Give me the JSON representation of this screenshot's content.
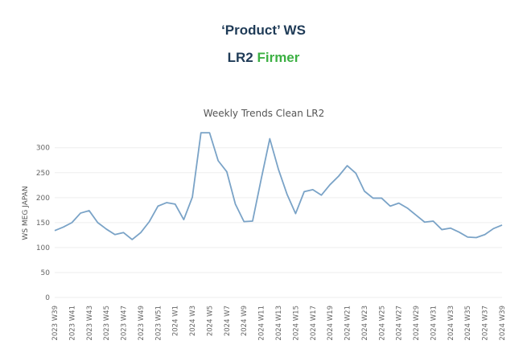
{
  "header": {
    "title": "‘Product’ WS",
    "subtitle_main": "LR2",
    "subtitle_status": "Firmer",
    "status_color": "#3cb043",
    "title_color": "#1f3b57"
  },
  "chart_data": {
    "type": "line",
    "title": "Weekly Trends Clean LR2",
    "ylabel": "WS MEG JAPAN",
    "xlabel": "",
    "ylim": [
      0,
      335
    ],
    "yticks": [
      0,
      50,
      100,
      150,
      200,
      250,
      300
    ],
    "grid": true,
    "line_color": "#7aa3c7",
    "tick_labels": [
      "2023 W39",
      "2023 W41",
      "2023 W43",
      "2023 W45",
      "2023 W47",
      "2023 W49",
      "2023 W51",
      "2024 W1",
      "2024 W3",
      "2024 W5",
      "2024 W7",
      "2024 W9",
      "2024 W11",
      "2024 W13",
      "2024 W15",
      "2024 W17",
      "2024 W19",
      "2024 W21",
      "2024 W23",
      "2024 W25",
      "2024 W27",
      "2024 W29",
      "2024 W31",
      "2024 W33",
      "2024 W35",
      "2024 W37",
      "2024 W39"
    ],
    "x": [
      "2023 W39",
      "2023 W40",
      "2023 W41",
      "2023 W42",
      "2023 W43",
      "2023 W44",
      "2023 W45",
      "2023 W46",
      "2023 W47",
      "2023 W48",
      "2023 W49",
      "2023 W50",
      "2023 W51",
      "2023 W52",
      "2024 W1",
      "2024 W2",
      "2024 W3",
      "2024 W4",
      "2024 W5",
      "2024 W6",
      "2024 W7",
      "2024 W8",
      "2024 W9",
      "2024 W10",
      "2024 W11",
      "2024 W12",
      "2024 W13",
      "2024 W14",
      "2024 W15",
      "2024 W16",
      "2024 W17",
      "2024 W18",
      "2024 W19",
      "2024 W20",
      "2024 W21",
      "2024 W22",
      "2024 W23",
      "2024 W24",
      "2024 W25",
      "2024 W26",
      "2024 W27",
      "2024 W28",
      "2024 W29",
      "2024 W30",
      "2024 W31",
      "2024 W32",
      "2024 W33",
      "2024 W34",
      "2024 W35",
      "2024 W36",
      "2024 W37",
      "2024 W38",
      "2024 W39"
    ],
    "values": [
      134,
      141,
      150,
      169,
      174,
      150,
      137,
      126,
      130,
      116,
      130,
      152,
      183,
      190,
      187,
      156,
      201,
      330,
      330,
      274,
      252,
      187,
      152,
      153,
      237,
      318,
      257,
      207,
      168,
      212,
      216,
      205,
      226,
      243,
      264,
      249,
      213,
      199,
      199,
      183,
      189,
      179,
      165,
      151,
      153,
      136,
      139,
      131,
      121,
      120,
      126,
      138,
      145
    ]
  }
}
